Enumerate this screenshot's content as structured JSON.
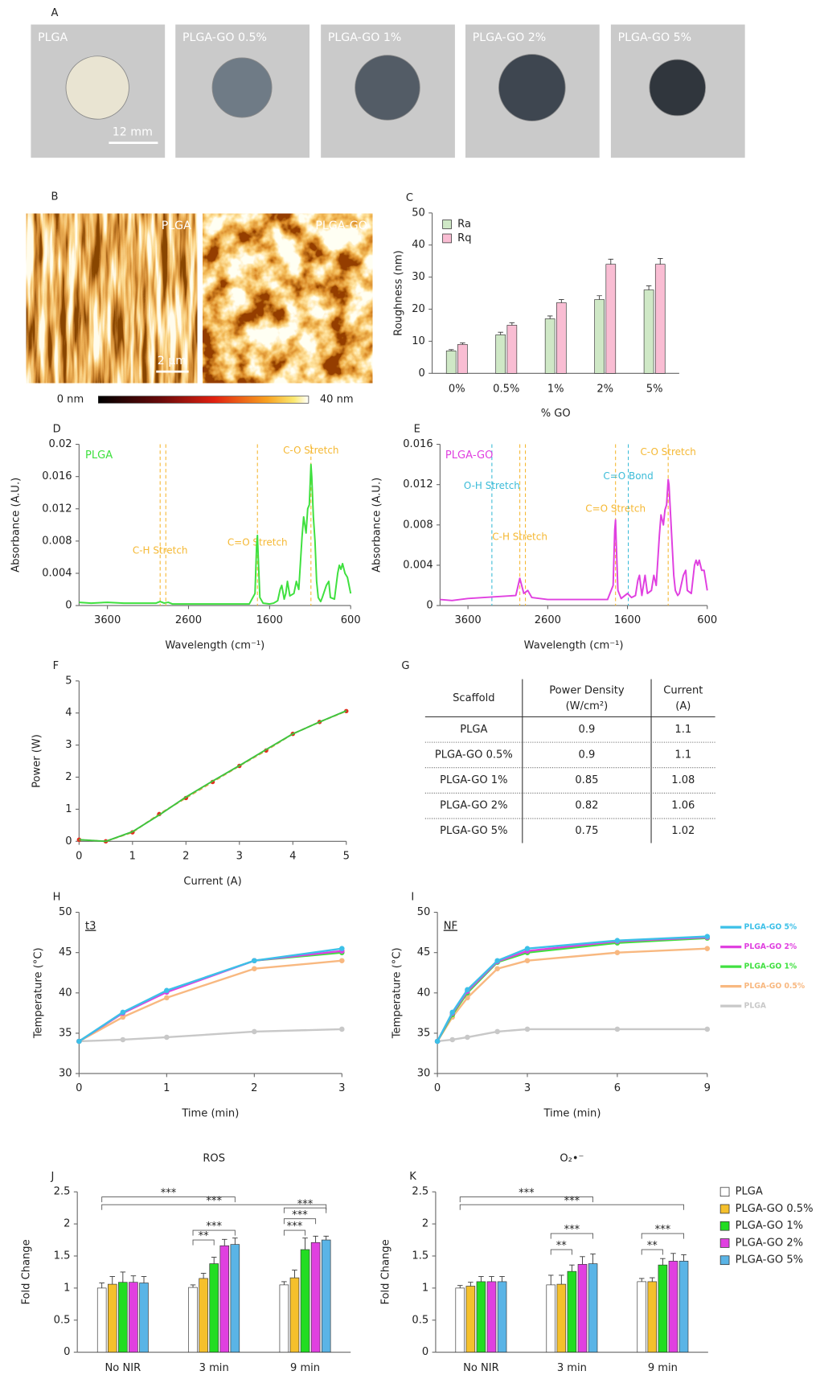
{
  "photos": {
    "label": "A",
    "items": [
      "PLGA",
      "PLGA-GO 0.5%",
      "PLGA-GO 1%",
      "PLGA-GO 2%",
      "PLGA-GO 5%"
    ],
    "scale_bar": "12 mm"
  },
  "afm": {
    "label": "B",
    "items": [
      "PLGA",
      "PLGA-GO"
    ],
    "scale_bar": "2 µm",
    "colorbar": [
      "0 nm",
      "40 nm"
    ]
  },
  "table": {
    "label": "G",
    "header": [
      [
        "Scaffold"
      ],
      [
        "Power Density",
        "(W/cm²)"
      ],
      [
        "Current",
        "(A)"
      ]
    ],
    "rows": [
      [
        "PLGA",
        0.9,
        1.1
      ],
      [
        "PLGA-GO 0.5%",
        0.9,
        1.1
      ],
      [
        "PLGA-GO 1%",
        0.85,
        1.08
      ],
      [
        "PLGA-GO 2%",
        0.82,
        1.06
      ],
      [
        "PLGA-GO 5%",
        0.75,
        1.02
      ]
    ]
  },
  "chart_data": [
    {
      "label": "C",
      "type": "bar",
      "categories": [
        "0%",
        "0.5%",
        "1%",
        "2%",
        "5%"
      ],
      "series": [
        {
          "name": "Ra",
          "color": "#cfe8c6",
          "values": [
            7,
            12,
            17,
            23,
            26
          ],
          "errors": [
            0.4,
            0.8,
            0.9,
            1.2,
            1.3
          ]
        },
        {
          "name": "Rq",
          "color": "#f9bdd3",
          "values": [
            9,
            15,
            22,
            34,
            34
          ],
          "errors": [
            0.5,
            0.8,
            1.0,
            1.6,
            1.8
          ]
        }
      ],
      "ylim": [
        0,
        50
      ],
      "yticks": [
        0,
        10,
        20,
        30,
        40,
        50
      ],
      "x_label": "% GO",
      "y_label": "Roughness (nm)",
      "legend": "top-left"
    },
    {
      "label": "D",
      "type": "line",
      "x": [
        3950,
        3800,
        3600,
        3400,
        3200,
        3000,
        2950,
        2900,
        2850,
        2800,
        2600,
        2400,
        2200,
        2000,
        1850,
        1780,
        1760,
        1750,
        1740,
        1720,
        1680,
        1600,
        1550,
        1500,
        1470,
        1450,
        1420,
        1400,
        1380,
        1350,
        1300,
        1270,
        1240,
        1200,
        1180,
        1150,
        1130,
        1110,
        1090,
        1080,
        1060,
        1040,
        1020,
        1000,
        970,
        950,
        900,
        870,
        850,
        800,
        760,
        740,
        720,
        700,
        670,
        640,
        600
      ],
      "series": [
        {
          "name": "PLGA",
          "color": "#3ee03e",
          "values": [
            0.0004,
            0.0003,
            0.0004,
            0.0003,
            0.0003,
            0.0003,
            0.0005,
            0.0003,
            0.0004,
            0.0002,
            0.0002,
            0.0002,
            0.0002,
            0.0002,
            0.0002,
            0.0015,
            0.0075,
            0.0087,
            0.006,
            0.001,
            0.0003,
            0.0002,
            0.0003,
            0.0006,
            0.002,
            0.0025,
            0.0008,
            0.0015,
            0.003,
            0.0012,
            0.0015,
            0.003,
            0.002,
            0.0085,
            0.011,
            0.009,
            0.012,
            0.0125,
            0.0175,
            0.016,
            0.011,
            0.008,
            0.003,
            0.001,
            0.0005,
            0.001,
            0.0025,
            0.003,
            0.001,
            0.0008,
            0.004,
            0.005,
            0.0045,
            0.0052,
            0.004,
            0.0035,
            0.0015
          ]
        }
      ],
      "xlim": [
        3950,
        600
      ],
      "xticks": [
        3600,
        2600,
        1600,
        600
      ],
      "ylim": [
        0,
        0.02
      ],
      "yticks": [
        0,
        0.004,
        0.008,
        0.012,
        0.016,
        0.02
      ],
      "x_label": "Wavelength (cm⁻¹)",
      "y_label": "Absorbance (A.U.)",
      "legend": "top-left",
      "vlines": [
        {
          "value": 2950,
          "label": "C-H Stretch",
          "color": "#f5b833"
        },
        {
          "value": 2880,
          "color": "#f5b833"
        },
        {
          "value": 1750,
          "label": "C=O Stretch",
          "color": "#f5b833"
        },
        {
          "value": 1090,
          "label": "C-O Stretch",
          "color": "#f5b833"
        }
      ]
    },
    {
      "label": "E",
      "type": "line",
      "x": [
        3950,
        3800,
        3600,
        3400,
        3200,
        3000,
        2950,
        2900,
        2850,
        2800,
        2600,
        2400,
        2200,
        2000,
        1850,
        1780,
        1760,
        1750,
        1740,
        1720,
        1680,
        1600,
        1550,
        1500,
        1470,
        1450,
        1420,
        1400,
        1380,
        1350,
        1300,
        1270,
        1240,
        1200,
        1180,
        1150,
        1130,
        1110,
        1090,
        1080,
        1060,
        1040,
        1020,
        1000,
        970,
        950,
        900,
        870,
        850,
        800,
        760,
        740,
        720,
        700,
        670,
        640,
        600
      ],
      "series": [
        {
          "name": "PLGA-GO",
          "color": "#e040e0",
          "values": [
            0.0006,
            0.0005,
            0.0007,
            0.0008,
            0.0009,
            0.001,
            0.0027,
            0.0012,
            0.0015,
            0.0008,
            0.0006,
            0.0006,
            0.0006,
            0.0006,
            0.0006,
            0.002,
            0.0075,
            0.0085,
            0.006,
            0.0015,
            0.0007,
            0.0012,
            0.0008,
            0.001,
            0.0025,
            0.003,
            0.001,
            0.002,
            0.003,
            0.0012,
            0.0015,
            0.003,
            0.002,
            0.007,
            0.009,
            0.008,
            0.0095,
            0.01,
            0.0125,
            0.012,
            0.009,
            0.006,
            0.003,
            0.0015,
            0.001,
            0.0012,
            0.003,
            0.0035,
            0.0015,
            0.0012,
            0.004,
            0.0045,
            0.004,
            0.0045,
            0.0035,
            0.0035,
            0.0015
          ]
        }
      ],
      "xlim": [
        3950,
        600
      ],
      "xticks": [
        3600,
        2600,
        1600,
        600
      ],
      "ylim": [
        0,
        0.016
      ],
      "yticks": [
        0,
        0.004,
        0.008,
        0.012,
        0.016
      ],
      "x_label": "Wavelength (cm⁻¹)",
      "y_label": "Absorbance (A.U.)",
      "legend": "top-left",
      "vlines": [
        {
          "value": 3300,
          "label": "O-H Stretch",
          "color": "#3cbcd8"
        },
        {
          "value": 2950,
          "label": "C-H Stretch",
          "color": "#f5b833"
        },
        {
          "value": 2880,
          "color": "#f5b833"
        },
        {
          "value": 1750,
          "label": "C=O Stretch",
          "color": "#f5b833"
        },
        {
          "value": 1590,
          "label": "C=O Bond",
          "color": "#3cbcd8"
        },
        {
          "value": 1090,
          "label": "C-O Stretch",
          "color": "#f5b833"
        }
      ]
    },
    {
      "label": "F",
      "type": "line",
      "x": [
        0,
        0.5,
        1,
        1.5,
        2,
        2.5,
        3,
        3.5,
        4,
        4.5,
        5
      ],
      "series": [
        {
          "color": "#3ec43e",
          "values": [
            0.05,
            0,
            0.3,
            0.82,
            1.38,
            1.88,
            2.36,
            2.86,
            3.35,
            3.72,
            4.07
          ]
        },
        {
          "color": "#f0a050",
          "dashed": true,
          "marker_color": "#e03020",
          "values": [
            0.05,
            0,
            0.28,
            0.85,
            1.35,
            1.85,
            2.35,
            2.83,
            3.35,
            3.72,
            4.06
          ]
        }
      ],
      "xlim": [
        0,
        5
      ],
      "xticks": [
        0,
        1,
        2,
        3,
        4,
        5
      ],
      "ylim": [
        0,
        5
      ],
      "yticks": [
        0,
        1,
        2,
        3,
        4,
        5
      ],
      "x_label": "Current (A)",
      "y_label": "Power (W)"
    },
    {
      "label": "H",
      "type": "line",
      "title": "t3",
      "x": [
        0,
        0.5,
        1,
        2,
        3
      ],
      "markers": true,
      "series": [
        {
          "color": "#3cc0e8",
          "values": [
            34,
            37.6,
            40.3,
            44,
            45.5
          ]
        },
        {
          "color": "#e040e0",
          "values": [
            34,
            37.5,
            40.1,
            44,
            45.2
          ]
        },
        {
          "color": "#40e040",
          "values": [
            34,
            37.5,
            40.2,
            44,
            45
          ]
        },
        {
          "color": "#f8b880",
          "values": [
            34,
            37,
            39.4,
            43,
            44
          ]
        },
        {
          "color": "#c8c8c8",
          "values": [
            34,
            34.2,
            34.5,
            35.2,
            35.5
          ]
        }
      ],
      "xlim": [
        0,
        3
      ],
      "xticks": [
        0,
        1,
        2,
        3
      ],
      "ylim": [
        30,
        50
      ],
      "yticks": [
        30,
        35,
        40,
        45,
        50
      ],
      "x_label": "Time (min)",
      "y_label": "Temperature (°C)"
    },
    {
      "label": "I",
      "type": "line",
      "title": "NF",
      "x": [
        0,
        0.5,
        1,
        2,
        3,
        6,
        9
      ],
      "markers": true,
      "series": [
        {
          "name": "PLGA-GO 5%",
          "color": "#3cc0e8",
          "values": [
            34,
            37.6,
            40.4,
            44,
            45.5,
            46.5,
            47
          ]
        },
        {
          "name": "PLGA-GO 2%",
          "color": "#e040e0",
          "values": [
            34,
            37.5,
            40.2,
            43.9,
            45.2,
            46.4,
            46.9
          ]
        },
        {
          "name": "PLGA-GO 1%",
          "color": "#40e040",
          "values": [
            34,
            37.3,
            40,
            43.8,
            45,
            46.2,
            46.8
          ]
        },
        {
          "name": "PLGA-GO 0.5%",
          "color": "#f8b880",
          "values": [
            34,
            37,
            39.4,
            43,
            44,
            45,
            45.5
          ]
        },
        {
          "name": "PLGA",
          "color": "#c8c8c8",
          "values": [
            34,
            34.2,
            34.5,
            35.2,
            35.5,
            35.5,
            35.5
          ]
        }
      ],
      "xlim": [
        0,
        9
      ],
      "xticks": [
        0,
        3,
        6,
        9
      ],
      "ylim": [
        30,
        50
      ],
      "yticks": [
        30,
        35,
        40,
        45,
        50
      ],
      "x_label": "Time (min)",
      "y_label": "Temperature (°C)",
      "legend": "right"
    },
    {
      "label": "J",
      "type": "bar",
      "title": "ROS",
      "categories": [
        "No NIR",
        "3 min",
        "9 min"
      ],
      "series": [
        {
          "color": "#ffffff",
          "values": [
            1,
            1.01,
            1.05
          ],
          "errors": [
            0.08,
            0.04,
            0.05
          ]
        },
        {
          "color": "#f5c02c",
          "values": [
            1.06,
            1.15,
            1.16
          ],
          "errors": [
            0.12,
            0.08,
            0.12
          ]
        },
        {
          "color": "#22dd22",
          "values": [
            1.09,
            1.38,
            1.6
          ],
          "errors": [
            0.16,
            0.1,
            0.18
          ]
        },
        {
          "color": "#e040e0",
          "values": [
            1.09,
            1.66,
            1.71
          ],
          "errors": [
            0.1,
            0.1,
            0.1
          ]
        },
        {
          "color": "#5ab4e6",
          "values": [
            1.08,
            1.68,
            1.75
          ],
          "errors": [
            0.1,
            0.1,
            0.06
          ]
        }
      ],
      "ylim": [
        0,
        2.5
      ],
      "yticks": [
        0,
        0.5,
        1,
        1.5,
        2,
        2.5
      ],
      "y_label": "Fold Change",
      "significance": [
        "***",
        "***",
        "***",
        "**",
        "***",
        "***",
        "***"
      ]
    },
    {
      "label": "K",
      "type": "bar",
      "title": "O₂•⁻",
      "categories": [
        "No NIR",
        "3 min",
        "9 min"
      ],
      "series": [
        {
          "name": "PLGA",
          "color": "#ffffff",
          "values": [
            1,
            1.05,
            1.1
          ],
          "errors": [
            0.04,
            0.15,
            0.05
          ]
        },
        {
          "name": "PLGA-GO 0.5%",
          "color": "#f5c02c",
          "values": [
            1.03,
            1.06,
            1.1
          ],
          "errors": [
            0.06,
            0.14,
            0.06
          ]
        },
        {
          "name": "PLGA-GO 1%",
          "color": "#22dd22",
          "values": [
            1.1,
            1.26,
            1.36
          ],
          "errors": [
            0.08,
            0.1,
            0.1
          ]
        },
        {
          "name": "PLGA-GO 2%",
          "color": "#e040e0",
          "values": [
            1.1,
            1.37,
            1.42
          ],
          "errors": [
            0.08,
            0.12,
            0.12
          ]
        },
        {
          "name": "PLGA-GO 5%",
          "color": "#5ab4e6",
          "values": [
            1.1,
            1.38,
            1.42
          ],
          "errors": [
            0.08,
            0.15,
            0.1
          ]
        }
      ],
      "ylim": [
        0,
        2.5
      ],
      "yticks": [
        0,
        0.5,
        1,
        1.5,
        2,
        2.5
      ],
      "y_label": "Fold Change",
      "legend": "right",
      "significance": [
        "***",
        "***",
        "***",
        "**",
        "***",
        "**"
      ]
    }
  ]
}
